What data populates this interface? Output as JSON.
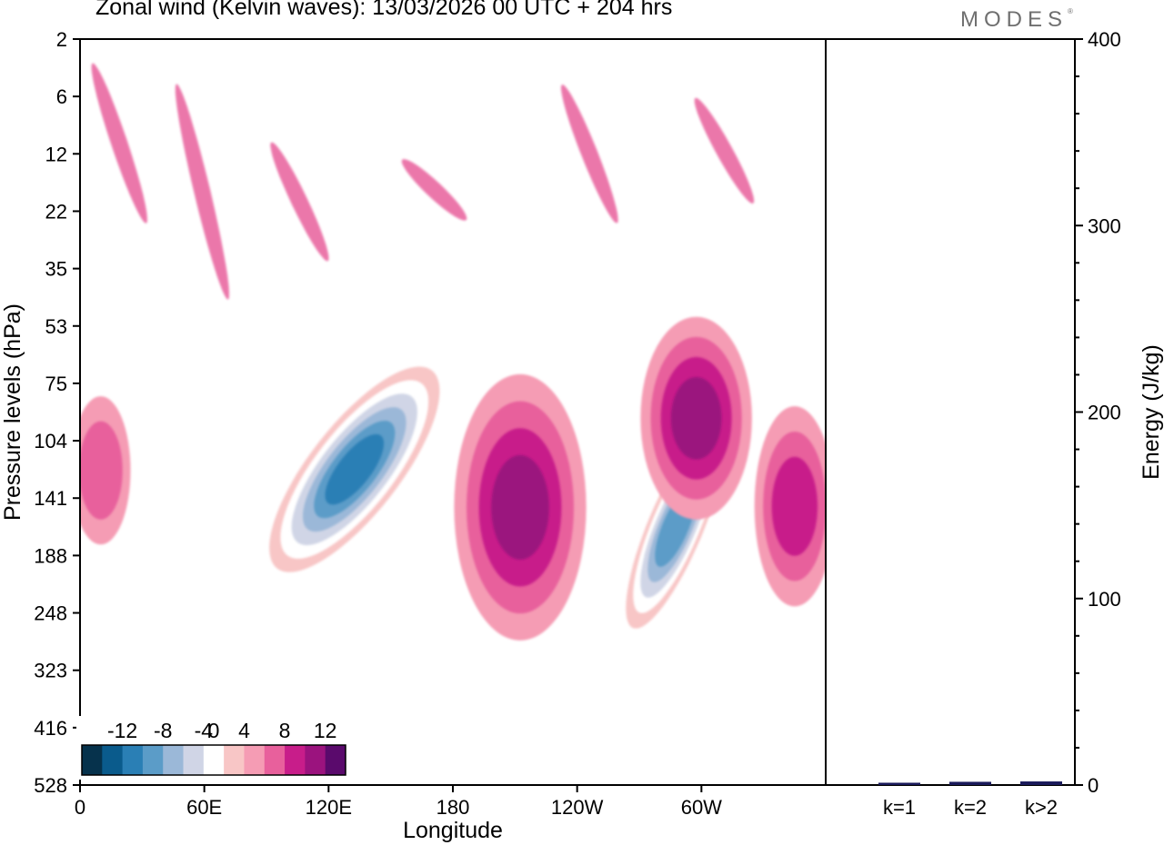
{
  "header": {
    "title": "Zonal wind (Kelvin waves):  13/03/2026  00 UTC  + 204 hrs",
    "brand": "MODES",
    "brand_mark": "®"
  },
  "chart_data": [
    {
      "type": "heatmap",
      "variable": "Zonal wind (Kelvin waves)",
      "xlabel": "Longitude",
      "ylabel": "Pressure levels (hPa)",
      "x_ticks": [
        "0",
        "60E",
        "120E",
        "180",
        "120W",
        "60W"
      ],
      "x_tick_degrees": [
        0,
        60,
        120,
        180,
        240,
        300
      ],
      "xlim": [
        0,
        360
      ],
      "y_ticks": [
        2,
        6,
        12,
        22,
        35,
        53,
        75,
        104,
        141,
        188,
        248,
        323,
        416,
        528
      ],
      "y_order": "top-to-bottom",
      "colorbar": {
        "labels": [
          "-12",
          "-8",
          "-4",
          "0",
          "4",
          "8",
          "12"
        ],
        "label_values": [
          -12,
          -8,
          -4,
          0,
          4,
          8,
          12
        ],
        "levels": [
          -14,
          -12,
          -10,
          -8,
          -6,
          -4,
          -2,
          2,
          4,
          6,
          8,
          10,
          12,
          14
        ],
        "colors": [
          "#06324c",
          "#0a5b8c",
          "#2a7fb5",
          "#5b9cc8",
          "#9bb8d8",
          "#d0d5e6",
          "#ffffff",
          "#f8c6c6",
          "#f59cb4",
          "#e8609c",
          "#c81d8a",
          "#9b137e",
          "#5a0a6c"
        ]
      },
      "features": [
        {
          "type": "negative",
          "level": -12,
          "lon_range": [
            100,
            165
          ],
          "p_range": [
            75,
            188
          ],
          "note": "main easterly anomaly, tilted"
        },
        {
          "type": "negative",
          "level": -10,
          "lon_range": [
            270,
            305
          ],
          "p_range": [
            104,
            248
          ]
        },
        {
          "type": "positive",
          "level": 8,
          "lon_range": [
            185,
            240
          ],
          "p_range": [
            75,
            270
          ]
        },
        {
          "type": "positive",
          "level": 8,
          "lon_range": [
            275,
            320
          ],
          "p_range": [
            53,
            150
          ]
        },
        {
          "type": "positive",
          "level": 6,
          "lon_range": [
            330,
            360
          ],
          "p_range": [
            90,
            230
          ]
        },
        {
          "type": "positive",
          "level": 4,
          "lon_range": [
            0,
            20
          ],
          "p_range": [
            85,
            170
          ]
        }
      ]
    },
    {
      "type": "bar",
      "categories": [
        "k=1",
        "k=2",
        "k>2"
      ],
      "values": [
        0.5,
        1.0,
        1.2
      ],
      "ylabel": "Energy (J/kg)",
      "ylim": [
        0,
        400
      ],
      "y_ticks": [
        0,
        100,
        200,
        300,
        400
      ],
      "bar_color": "#1a1a5a"
    }
  ]
}
